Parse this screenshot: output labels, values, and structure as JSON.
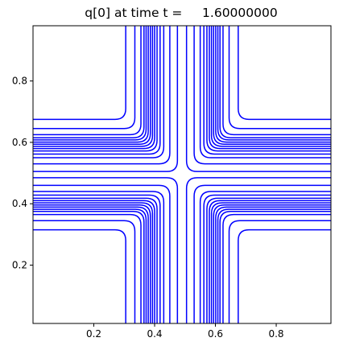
{
  "figure": {
    "title": "q[0] at time t =     1.60000000"
  },
  "chart_data": {
    "type": "contour",
    "title": "q[0] at time t =     1.60000000",
    "xlabel": "",
    "ylabel": "",
    "xlim": [
      0.0,
      0.98
    ],
    "ylim": [
      0.01,
      0.98
    ],
    "x_ticks": [
      0.2,
      0.4,
      0.6,
      0.8
    ],
    "x_tick_labels": [
      "0.2",
      "0.4",
      "0.6",
      "0.8"
    ],
    "y_ticks": [
      0.2,
      0.4,
      0.6,
      0.8
    ],
    "y_tick_labels": [
      "0.2",
      "0.4",
      "0.6",
      "0.8"
    ],
    "grid": false,
    "line_color": "#0000ff",
    "contour_levels": [
      {
        "x_offset": 0.305,
        "y_offset": 0.305
      },
      {
        "x_offset": 0.335,
        "y_offset": 0.335
      },
      {
        "x_offset": 0.355,
        "y_offset": 0.355
      },
      {
        "x_offset": 0.365,
        "y_offset": 0.365
      },
      {
        "x_offset": 0.372,
        "y_offset": 0.372
      },
      {
        "x_offset": 0.379,
        "y_offset": 0.379
      },
      {
        "x_offset": 0.386,
        "y_offset": 0.386
      },
      {
        "x_offset": 0.393,
        "y_offset": 0.393
      },
      {
        "x_offset": 0.4,
        "y_offset": 0.4
      },
      {
        "x_offset": 0.408,
        "y_offset": 0.408
      },
      {
        "x_offset": 0.418,
        "y_offset": 0.418
      },
      {
        "x_offset": 0.43,
        "y_offset": 0.43
      },
      {
        "x_offset": 0.45,
        "y_offset": 0.45
      },
      {
        "x_offset": 0.475,
        "y_offset": 0.475
      }
    ],
    "corners": [
      {
        "name": "top-left",
        "cx": 0.0,
        "cy": 0.98
      },
      {
        "name": "top-right",
        "cx": 0.98,
        "cy": 0.98
      },
      {
        "name": "bottom-left",
        "cx": 0.0,
        "cy": 0.01
      },
      {
        "name": "bottom-right",
        "cx": 0.98,
        "cy": 0.01
      }
    ]
  }
}
